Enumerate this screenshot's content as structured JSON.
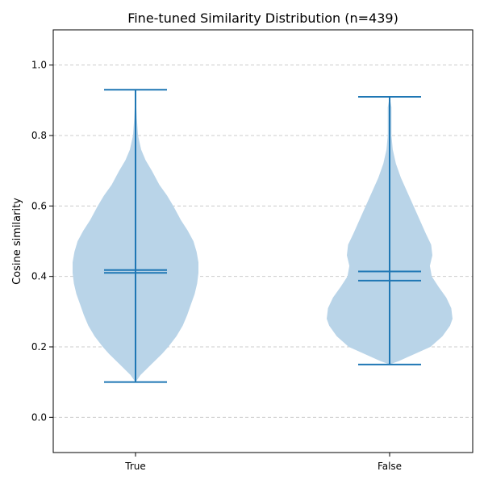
{
  "chart_data": {
    "type": "violin",
    "title": "Fine-tuned Similarity Distribution (n=439)",
    "xlabel": "",
    "ylabel": "Cosine similarity",
    "ylim": [
      -0.1,
      1.1
    ],
    "yticks": [
      0.0,
      0.2,
      0.4,
      0.6,
      0.8,
      1.0
    ],
    "ytick_labels": [
      "0.0",
      "0.2",
      "0.4",
      "0.6",
      "0.8",
      "1.0"
    ],
    "grid": {
      "y": true,
      "x": false,
      "style": "dashed"
    },
    "categories": [
      "True",
      "False"
    ],
    "colors": {
      "body": "#b9d4e8",
      "line": "#1f77b4",
      "grid": "#cccccc",
      "axis": "#000000"
    },
    "series": [
      {
        "category": "True",
        "min": 0.1,
        "max": 0.93,
        "mean": 0.418,
        "median": 0.41,
        "density_profile": [
          [
            0.1,
            0.0
          ],
          [
            0.12,
            0.08
          ],
          [
            0.15,
            0.25
          ],
          [
            0.18,
            0.42
          ],
          [
            0.2,
            0.52
          ],
          [
            0.23,
            0.65
          ],
          [
            0.26,
            0.75
          ],
          [
            0.29,
            0.82
          ],
          [
            0.32,
            0.88
          ],
          [
            0.35,
            0.94
          ],
          [
            0.38,
            0.98
          ],
          [
            0.41,
            1.0
          ],
          [
            0.44,
            1.0
          ],
          [
            0.47,
            0.97
          ],
          [
            0.5,
            0.92
          ],
          [
            0.53,
            0.83
          ],
          [
            0.56,
            0.72
          ],
          [
            0.6,
            0.6
          ],
          [
            0.63,
            0.5
          ],
          [
            0.66,
            0.38
          ],
          [
            0.7,
            0.26
          ],
          [
            0.73,
            0.16
          ],
          [
            0.76,
            0.09
          ],
          [
            0.8,
            0.04
          ],
          [
            0.85,
            0.02
          ],
          [
            0.93,
            0.0
          ]
        ]
      },
      {
        "category": "False",
        "min": 0.15,
        "max": 0.91,
        "mean": 0.414,
        "median": 0.388,
        "density_profile": [
          [
            0.15,
            0.0
          ],
          [
            0.16,
            0.15
          ],
          [
            0.18,
            0.4
          ],
          [
            0.2,
            0.65
          ],
          [
            0.23,
            0.84
          ],
          [
            0.26,
            0.96
          ],
          [
            0.28,
            1.0
          ],
          [
            0.31,
            0.98
          ],
          [
            0.34,
            0.9
          ],
          [
            0.37,
            0.78
          ],
          [
            0.4,
            0.67
          ],
          [
            0.43,
            0.64
          ],
          [
            0.46,
            0.68
          ],
          [
            0.49,
            0.66
          ],
          [
            0.52,
            0.58
          ],
          [
            0.56,
            0.48
          ],
          [
            0.6,
            0.38
          ],
          [
            0.64,
            0.28
          ],
          [
            0.68,
            0.18
          ],
          [
            0.72,
            0.1
          ],
          [
            0.76,
            0.05
          ],
          [
            0.8,
            0.03
          ],
          [
            0.85,
            0.03
          ],
          [
            0.88,
            0.03
          ],
          [
            0.91,
            0.0
          ]
        ]
      }
    ]
  }
}
